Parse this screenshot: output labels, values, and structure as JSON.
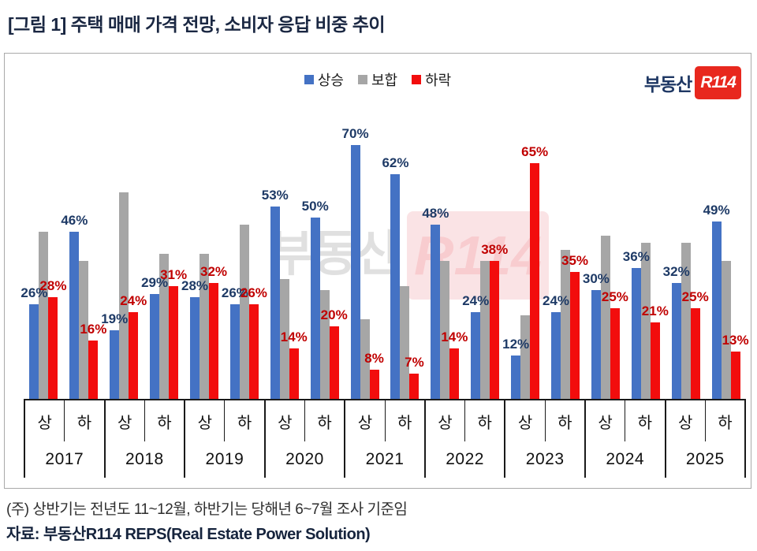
{
  "title": "[그림 1] 주택 매매 가격 전망, 소비자 응답 비중 추이",
  "logo": {
    "text": "부동산",
    "badge": "R114"
  },
  "watermark": {
    "text": "부동산",
    "badge": "R114"
  },
  "footnote": "(주) 상반기는 전년도 11~12월, 하반기는 당해년 6~7월 조사 기준임",
  "source": "자료: 부동산R114 REPS(Real Estate Power Solution)",
  "chart_data": {
    "type": "bar",
    "title": "주택 매매 가격 전망, 소비자 응답 비중 추이",
    "unit": "%",
    "label_suffix": "%",
    "ylim": [
      0,
      75
    ],
    "grid": false,
    "legend_position": "top-center",
    "series": [
      {
        "name": "상승",
        "name_en": "rise",
        "color": "#4472c4",
        "labeled": true
      },
      {
        "name": "보합",
        "name_en": "flat",
        "color": "#a6a6a6",
        "labeled": false
      },
      {
        "name": "하락",
        "name_en": "fall",
        "color": "#f20d0d",
        "labeled": true
      }
    ],
    "groups": [
      {
        "year": "2017",
        "halves": [
          {
            "period": "상",
            "values": [
              26,
              46,
              28
            ]
          },
          {
            "period": "하",
            "values": [
              46,
              38,
              16
            ]
          }
        ]
      },
      {
        "year": "2018",
        "halves": [
          {
            "period": "상",
            "values": [
              19,
              57,
              24
            ]
          },
          {
            "period": "하",
            "values": [
              29,
              40,
              31
            ]
          }
        ]
      },
      {
        "year": "2019",
        "halves": [
          {
            "period": "상",
            "values": [
              28,
              40,
              32
            ]
          },
          {
            "period": "하",
            "values": [
              26,
              48,
              26
            ]
          }
        ]
      },
      {
        "year": "2020",
        "halves": [
          {
            "period": "상",
            "values": [
              53,
              33,
              14
            ]
          },
          {
            "period": "하",
            "values": [
              50,
              30,
              20
            ]
          }
        ]
      },
      {
        "year": "2021",
        "halves": [
          {
            "period": "상",
            "values": [
              70,
              22,
              8
            ]
          },
          {
            "period": "하",
            "values": [
              62,
              31,
              7
            ]
          }
        ]
      },
      {
        "year": "2022",
        "halves": [
          {
            "period": "상",
            "values": [
              48,
              38,
              14
            ]
          },
          {
            "period": "하",
            "values": [
              24,
              38,
              38
            ]
          }
        ]
      },
      {
        "year": "2023",
        "halves": [
          {
            "period": "상",
            "values": [
              12,
              23,
              65
            ]
          },
          {
            "period": "하",
            "values": [
              24,
              41,
              35
            ]
          }
        ]
      },
      {
        "year": "2024",
        "halves": [
          {
            "period": "상",
            "values": [
              30,
              45,
              25
            ]
          },
          {
            "period": "하",
            "values": [
              36,
              43,
              21
            ]
          }
        ]
      },
      {
        "year": "2025",
        "halves": [
          {
            "period": "상",
            "values": [
              32,
              43,
              25
            ]
          },
          {
            "period": "하",
            "values": [
              49,
              38,
              13
            ]
          }
        ]
      }
    ]
  }
}
